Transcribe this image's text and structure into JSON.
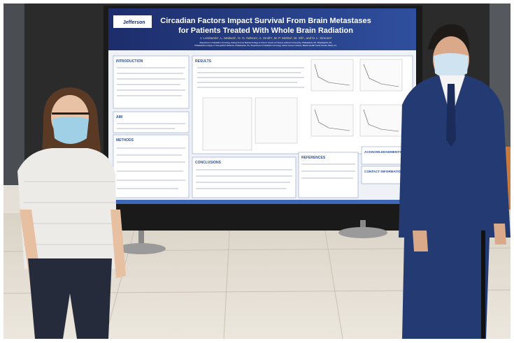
{
  "poster": {
    "logo": "Jefferson",
    "title_lines": [
      "Circadian Factors Impact Survival From Brain Metastases",
      "for Patients Treated With Whole Brain Radiation"
    ],
    "authors": "J. Lombardo¹, L. Matlack¹, N. G. Nelson¹, A. Smith¹, M. P. Mehta², W. Shi¹, and N. L. Simone¹",
    "affiliation_lines": [
      "¹Department of Radiation Oncology, Sidney Kimmel Medical College & Cancer Center at Thomas Jefferson University, Philadelphia, PA, Philadelphia, PA,",
      "Philadelphia College of Osteopathic Medicine, Philadelphia, PA, ²Department of Radiation Oncology, Miami Cancer Institute, Baptist Health South Florida, Miami, FL"
    ],
    "sections": {
      "introduction": "INTRODUCTION",
      "aim": "AIM",
      "methods": "METHODS",
      "results": "RESULTS",
      "conclusions": "CONCLUSIONS",
      "references": "REFERENCES",
      "acknowledgements": "ACKNOWLEDGEMENTS",
      "contact": "CONTACT INFORMATION"
    }
  }
}
